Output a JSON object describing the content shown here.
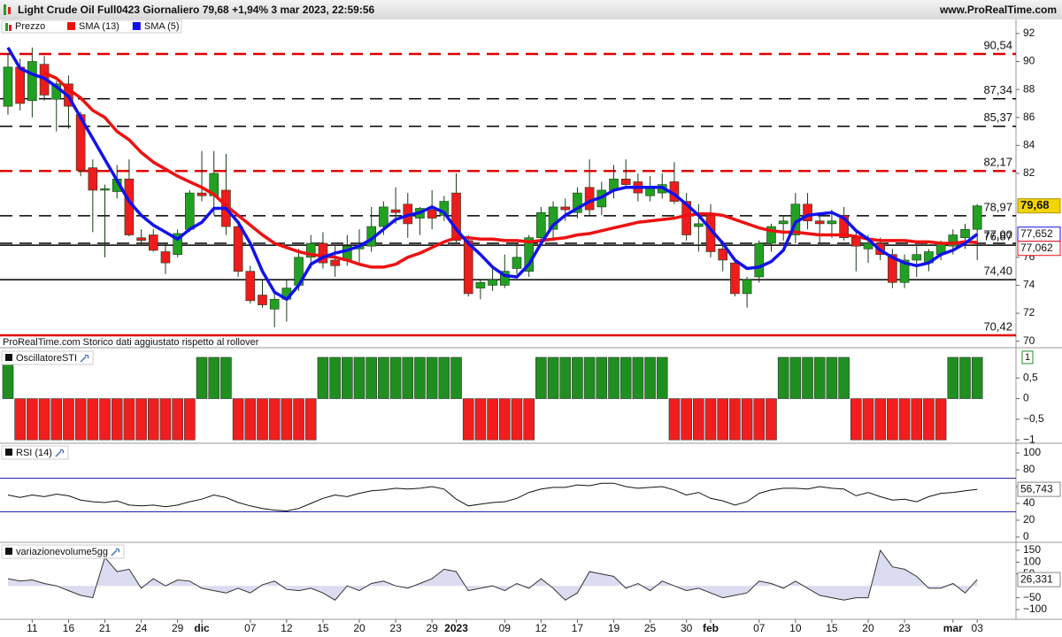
{
  "header": {
    "title": "Light Crude Oil Full0423 Giornaliero 79,68 +1,94% 3 mar 2023, 22:59:56",
    "site": "www.ProRealTime.com"
  },
  "chart_data": [
    {
      "type": "candlestick",
      "name": "Prezzo",
      "note": "ProRealTime.com Storico dati aggiustato rispetto al rollover",
      "up_color": "#22a022",
      "down_color": "#ee1c1c",
      "ylim": [
        69.6,
        92.5
      ],
      "yticks": [
        70,
        72,
        74,
        76,
        82,
        84,
        86,
        88,
        90,
        92
      ],
      "open": [
        86.8,
        89.6,
        87.2,
        89.8,
        87.3,
        88.4,
        86.2,
        82.4,
        80.8,
        80.7,
        81.6,
        77.4,
        77.6,
        76.4,
        76.2,
        78.0,
        80.6,
        80.4,
        80.8,
        78.2,
        75.0,
        73.3,
        72.3,
        73.0,
        74.0,
        76.0,
        77.0,
        75.8,
        75.8,
        76.6,
        76.8,
        78.2,
        79.4,
        79.8,
        78.8,
        79.4,
        79.0,
        80.6,
        77.2,
        73.8,
        74.0,
        74.0,
        75.2,
        75.0,
        77.4,
        78.0,
        79.6,
        79.2,
        81.0,
        79.6,
        80.8,
        81.6,
        81.4,
        80.4,
        80.6,
        81.4,
        80.0,
        78.2,
        79.0,
        76.6,
        75.6,
        73.4,
        74.6,
        77.0,
        78.4,
        77.6,
        79.8,
        78.6,
        78.4,
        79.0,
        77.4,
        76.6,
        77.0,
        76.2,
        74.2,
        75.8,
        75.6,
        76.2,
        76.8,
        77.4,
        78.0
      ],
      "high": [
        90.6,
        90.2,
        91.0,
        90.4,
        88.6,
        89.0,
        86.4,
        83.0,
        81.2,
        82.6,
        83.0,
        78.0,
        78.0,
        77.0,
        78.0,
        80.8,
        83.6,
        83.6,
        83.4,
        78.6,
        75.4,
        74.4,
        73.6,
        74.4,
        76.6,
        77.6,
        77.8,
        76.8,
        77.6,
        78.0,
        79.6,
        80.0,
        81.0,
        80.6,
        79.6,
        80.8,
        80.4,
        82.0,
        77.6,
        74.4,
        75.2,
        76.2,
        77.0,
        77.6,
        79.6,
        80.0,
        80.2,
        81.0,
        83.0,
        81.4,
        82.6,
        83.0,
        82.0,
        81.8,
        82.0,
        82.8,
        80.6,
        79.8,
        79.8,
        77.2,
        76.0,
        74.6,
        77.2,
        78.4,
        79.0,
        80.6,
        80.6,
        79.2,
        79.4,
        79.6,
        77.8,
        77.6,
        77.4,
        76.6,
        76.2,
        76.8,
        76.6,
        77.2,
        78.0,
        78.4,
        79.8
      ],
      "low": [
        86.2,
        86.5,
        86.0,
        87.2,
        85.0,
        85.2,
        81.8,
        77.8,
        76.0,
        80.2,
        77.5,
        76.8,
        76.4,
        74.8,
        76.0,
        77.8,
        80.0,
        79.0,
        77.6,
        74.6,
        72.7,
        72.4,
        71.0,
        71.4,
        73.6,
        75.2,
        75.2,
        74.6,
        75.4,
        75.6,
        76.4,
        77.6,
        78.4,
        77.4,
        77.6,
        78.0,
        78.6,
        77.0,
        73.2,
        73.0,
        73.6,
        73.8,
        74.8,
        74.6,
        77.0,
        77.4,
        78.6,
        78.8,
        79.0,
        79.0,
        80.2,
        81.0,
        80.0,
        80.0,
        80.2,
        79.8,
        77.2,
        76.4,
        76.0,
        75.0,
        73.2,
        72.4,
        74.2,
        76.4,
        77.2,
        77.0,
        78.0,
        77.0,
        77.4,
        77.2,
        75.0,
        75.6,
        75.8,
        73.8,
        73.8,
        74.6,
        75.0,
        75.8,
        76.2,
        76.6,
        75.8
      ],
      "close": [
        89.6,
        87.0,
        90.0,
        87.6,
        88.4,
        86.8,
        82.2,
        80.8,
        80.9,
        81.6,
        77.6,
        77.2,
        76.5,
        75.6,
        77.7,
        80.6,
        80.4,
        82.0,
        78.2,
        75.0,
        72.9,
        72.6,
        73.0,
        73.8,
        76.0,
        77.0,
        75.6,
        75.4,
        76.8,
        76.8,
        78.2,
        79.6,
        79.2,
        78.4,
        79.5,
        78.8,
        80.0,
        77.2,
        73.4,
        74.2,
        74.4,
        75.0,
        76.0,
        77.4,
        79.2,
        79.6,
        79.4,
        80.6,
        79.4,
        80.8,
        81.6,
        81.2,
        80.6,
        81.0,
        81.2,
        80.0,
        77.6,
        78.4,
        76.4,
        75.8,
        73.4,
        74.4,
        77.0,
        78.2,
        78.6,
        79.8,
        78.6,
        78.4,
        78.6,
        77.4,
        76.8,
        77.0,
        76.2,
        74.2,
        75.8,
        76.2,
        76.4,
        77.0,
        77.6,
        78.0,
        79.68
      ],
      "last_label": "79,68",
      "series": [
        {
          "name": "SMA (13)",
          "color": "#ee1111",
          "last_label": "77,062",
          "values": [
            null,
            null,
            null,
            89.2,
            88.8,
            88.0,
            87.4,
            86.5,
            86.0,
            85.0,
            84.4,
            83.5,
            82.8,
            82.3,
            81.8,
            81.4,
            81.0,
            80.5,
            79.7,
            79.0,
            78.3,
            77.6,
            77.0,
            76.7,
            76.4,
            76.2,
            76.1,
            76.0,
            75.8,
            75.5,
            75.3,
            75.3,
            75.5,
            76.0,
            76.3,
            76.7,
            77.1,
            77.4,
            77.4,
            77.3,
            77.3,
            77.2,
            77.2,
            77.1,
            77.2,
            77.3,
            77.4,
            77.6,
            77.7,
            77.9,
            78.1,
            78.3,
            78.5,
            78.6,
            78.7,
            78.8,
            79.0,
            79.1,
            79.1,
            79.0,
            78.7,
            78.4,
            78.1,
            77.9,
            77.8,
            77.8,
            77.7,
            77.6,
            77.6,
            77.6,
            77.5,
            77.3,
            77.2,
            77.2,
            77.2,
            77.1,
            77.1,
            77.0,
            77.0,
            77.1,
            77.062
          ]
        },
        {
          "name": "SMA (5)",
          "color": "#1111ee",
          "last_label": "77,652",
          "values": [
            91.0,
            89.5,
            89.1,
            88.8,
            88.2,
            87.5,
            86.0,
            84.5,
            83.0,
            81.5,
            80.0,
            79.0,
            78.3,
            77.8,
            77.3,
            78.0,
            78.5,
            79.5,
            79.5,
            78.5,
            77.0,
            75.0,
            73.5,
            73.0,
            74.0,
            75.5,
            76.0,
            76.3,
            76.5,
            76.8,
            77.3,
            78.0,
            78.7,
            79.0,
            79.2,
            79.6,
            79.2,
            78.0,
            77.0,
            76.2,
            75.3,
            74.7,
            74.6,
            75.5,
            77.0,
            78.3,
            79.0,
            79.5,
            80.0,
            80.3,
            80.8,
            81.0,
            81.0,
            81.0,
            81.0,
            80.5,
            79.8,
            79.0,
            78.0,
            77.0,
            75.8,
            75.2,
            75.3,
            75.7,
            76.5,
            78.5,
            79.0,
            79.1,
            79.2,
            78.8,
            77.9,
            77.3,
            76.5,
            76.0,
            75.6,
            75.4,
            75.6,
            76.2,
            76.5,
            77.0,
            77.652
          ]
        }
      ],
      "levels": [
        {
          "value": 90.54,
          "label": "90,54",
          "color": "#e00000",
          "dashed": true
        },
        {
          "value": 87.34,
          "label": "87,34",
          "color": "#000000",
          "dashed": true
        },
        {
          "value": 85.37,
          "label": "85,37",
          "color": "#000000",
          "dashed": true
        },
        {
          "value": 82.17,
          "label": "82,17",
          "color": "#e00000",
          "dashed": true
        },
        {
          "value": 78.97,
          "label": "78,97",
          "color": "#000000",
          "dashed": true
        },
        {
          "value": 77.0,
          "label": "77,00",
          "color": "#000000",
          "dashed": true
        },
        {
          "value": 76.87,
          "label": "76,87",
          "color": "#000000",
          "dashed": false
        },
        {
          "value": 74.4,
          "label": "74,40",
          "color": "#000000",
          "dashed": false
        },
        {
          "value": 70.42,
          "label": "70,42",
          "color": "#e00000",
          "dashed": false
        }
      ]
    },
    {
      "type": "bar",
      "title": "OscillatoreSTI",
      "up_color": "#1f8f1f",
      "down_color": "#f01e1e",
      "ylim": [
        -1.06,
        1.17
      ],
      "yticks": [
        {
          "value": 0.5,
          "label": "0,5"
        },
        0,
        {
          "value": -0.5,
          "label": "−0,5"
        },
        {
          "value": -1,
          "label": "−1"
        }
      ],
      "last_label": "1",
      "values": [
        1,
        -1,
        -1,
        -1,
        -1,
        -1,
        -1,
        -1,
        -1,
        -1,
        -1,
        -1,
        -1,
        -1,
        -1,
        -1,
        1,
        1,
        1,
        -1,
        -1,
        -1,
        -1,
        -1,
        -1,
        -1,
        1,
        1,
        1,
        1,
        1,
        1,
        1,
        1,
        1,
        1,
        1,
        1,
        -1,
        -1,
        -1,
        -1,
        -1,
        -1,
        1,
        1,
        1,
        1,
        1,
        1,
        1,
        1,
        1,
        1,
        1,
        -1,
        -1,
        -1,
        -1,
        -1,
        -1,
        -1,
        -1,
        -1,
        1,
        1,
        1,
        1,
        1,
        1,
        -1,
        -1,
        -1,
        -1,
        -1,
        -1,
        -1,
        -1,
        1,
        1,
        1
      ]
    },
    {
      "type": "line",
      "title": "RSI (14)",
      "color": "#111111",
      "level_color": "#2222aa",
      "levels": [
        70,
        30
      ],
      "ylim": [
        -5.3,
        109.5
      ],
      "yticks": [
        0,
        20,
        40,
        60,
        80,
        100
      ],
      "last_label": "56,743",
      "values": [
        50,
        47,
        50,
        48,
        51,
        49,
        44,
        42,
        41,
        43,
        38,
        37,
        38,
        36,
        38,
        42,
        45,
        50,
        47,
        41,
        37,
        34,
        32,
        31,
        34,
        40,
        46,
        50,
        48,
        52,
        55,
        56,
        58,
        57,
        58,
        60,
        57,
        45,
        37,
        39,
        41,
        42,
        46,
        53,
        57,
        59,
        59,
        62,
        61,
        64,
        64,
        60,
        58,
        59,
        60,
        56,
        50,
        53,
        46,
        43,
        38,
        42,
        52,
        56,
        58,
        58,
        57,
        60,
        58,
        57,
        49,
        53,
        48,
        44,
        45,
        42,
        48,
        52,
        53,
        55,
        56.743
      ]
    },
    {
      "type": "area",
      "title": "variazionevolume5gg",
      "color": "#333333",
      "fill": "#dcdcf0",
      "ylim": [
        -141,
        176
      ],
      "yticks": [
        {
          "value": -100,
          "label": "−100"
        },
        {
          "value": -50,
          "label": "−50"
        },
        50,
        100,
        150
      ],
      "last_label": "26,331",
      "values": [
        30,
        20,
        25,
        10,
        0,
        -20,
        -40,
        -50,
        120,
        60,
        70,
        -10,
        30,
        0,
        25,
        20,
        -10,
        -20,
        -30,
        -10,
        -30,
        5,
        20,
        -15,
        -20,
        -10,
        -30,
        -60,
        0,
        -20,
        10,
        20,
        0,
        -10,
        10,
        30,
        70,
        60,
        -20,
        -10,
        0,
        -20,
        10,
        -10,
        30,
        -10,
        -60,
        -30,
        60,
        50,
        40,
        -10,
        10,
        -20,
        20,
        0,
        -20,
        -10,
        -30,
        -50,
        -40,
        -30,
        20,
        10,
        -10,
        20,
        -10,
        -40,
        -50,
        -60,
        -50,
        -50,
        150,
        80,
        70,
        40,
        -10,
        -10,
        10,
        -30,
        26.331
      ],
      "categories": [
        null,
        null,
        "11",
        null,
        null,
        "16",
        null,
        null,
        "21",
        null,
        null,
        "24",
        null,
        null,
        "29",
        null,
        "dic",
        null,
        null,
        null,
        "07",
        null,
        null,
        "12",
        null,
        null,
        "15",
        null,
        null,
        "20",
        null,
        null,
        "23",
        null,
        null,
        "29",
        null,
        "2023",
        null,
        null,
        null,
        "09",
        null,
        null,
        "12",
        null,
        null,
        "17",
        null,
        null,
        "19",
        null,
        null,
        "25",
        null,
        null,
        "30",
        null,
        "feb",
        null,
        null,
        null,
        "07",
        null,
        null,
        "10",
        null,
        null,
        "15",
        null,
        null,
        "20",
        null,
        null,
        "23",
        null,
        null,
        null,
        "mar",
        null,
        "03"
      ]
    }
  ]
}
